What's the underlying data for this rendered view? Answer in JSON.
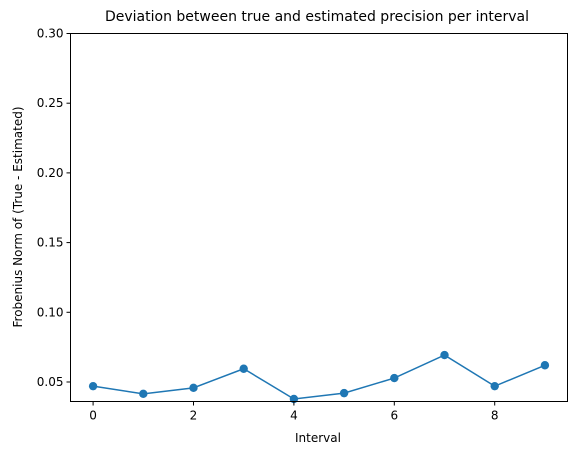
{
  "chart_data": {
    "type": "line",
    "title": "Deviation between true and estimated precision per interval",
    "xlabel": "Interval",
    "ylabel": "Frobenius Norm of (True - Estimated)",
    "xlim": [
      -0.45,
      9.45
    ],
    "ylim": [
      0.036,
      0.3
    ],
    "xticks": [
      0,
      2,
      4,
      6,
      8
    ],
    "xtick_labels": [
      "0",
      "2",
      "4",
      "6",
      "8"
    ],
    "yticks": [
      0.05,
      0.1,
      0.15,
      0.2,
      0.25,
      0.3
    ],
    "ytick_labels": [
      "0.05",
      "0.10",
      "0.15",
      "0.20",
      "0.25",
      "0.30"
    ],
    "grid": false,
    "line_color": "#1f77b4",
    "series": [
      {
        "x": [
          0,
          1,
          2,
          3,
          4,
          5,
          6,
          7,
          8,
          9
        ],
        "values": [
          0.047,
          0.0415,
          0.0458,
          0.0595,
          0.0378,
          0.042,
          0.0528,
          0.0693,
          0.047,
          0.062
        ],
        "marker": "circle"
      }
    ]
  }
}
